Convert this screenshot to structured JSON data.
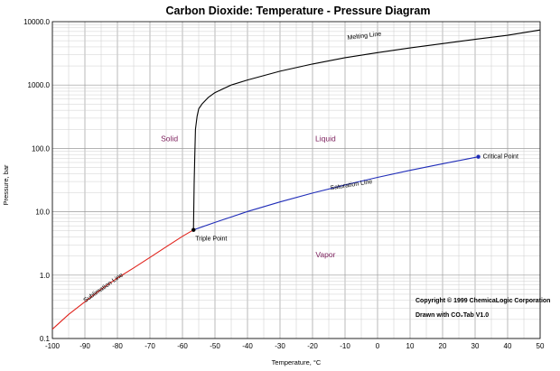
{
  "chart_data": {
    "type": "line",
    "title": "Carbon Dioxide: Temperature - Pressure Diagram",
    "xlabel": "Temperature, °C",
    "ylabel": "Pressure, bar",
    "xlim": [
      -100,
      50
    ],
    "ylim": [
      0.1,
      10000
    ],
    "yscale": "log",
    "grid": true,
    "x_ticks": [
      -100,
      -90,
      -80,
      -70,
      -60,
      -50,
      -40,
      -30,
      -20,
      -10,
      0,
      10,
      20,
      30,
      40,
      50
    ],
    "x_tick_labels": [
      "-100",
      "-90",
      "-80",
      "-70",
      "-60",
      "-50",
      "-40",
      "-30",
      "-20",
      "-10",
      "0",
      "10",
      "20",
      "30",
      "40",
      "50"
    ],
    "y_ticks": [
      0.1,
      1,
      10,
      100,
      1000,
      10000
    ],
    "y_tick_labels": [
      "0.1",
      "1.0",
      "10.0",
      "100.0",
      "1000.0",
      "10000.0"
    ],
    "series": [
      {
        "name": "Sublimation Line",
        "color": "#e0231c",
        "x": [
          -100,
          -95,
          -90,
          -85,
          -80,
          -75,
          -70,
          -65,
          -60,
          -56.6
        ],
        "y": [
          0.14,
          0.24,
          0.38,
          0.6,
          0.9,
          1.3,
          1.9,
          2.8,
          4.1,
          5.18
        ]
      },
      {
        "name": "Saturation Line",
        "color": "#1f2cb8",
        "x": [
          -56.6,
          -50,
          -40,
          -30,
          -20,
          -10,
          0,
          10,
          20,
          31
        ],
        "y": [
          5.18,
          6.8,
          10.1,
          14.3,
          19.7,
          26.5,
          34.9,
          45,
          57.3,
          73.8
        ]
      },
      {
        "name": "Melting Line",
        "color": "#000000",
        "x": [
          -56.6,
          -56.4,
          -56.2,
          -56,
          -55.5,
          -55,
          -54,
          -52,
          -50,
          -45,
          -40,
          -30,
          -20,
          -10,
          0,
          10,
          20,
          30,
          40,
          50
        ],
        "y": [
          5.18,
          30,
          80,
          200,
          320,
          420,
          500,
          640,
          760,
          1000,
          1200,
          1650,
          2150,
          2700,
          3250,
          3850,
          4500,
          5250,
          6100,
          7400
        ]
      }
    ],
    "points": [
      {
        "name": "Triple Point",
        "x": -56.6,
        "y": 5.18,
        "color": "#000000"
      },
      {
        "name": "Critical Point",
        "x": 31,
        "y": 73.8,
        "color": "#1f2cb8"
      }
    ],
    "region_labels": [
      {
        "text": "Solid",
        "x": -64,
        "y": 130
      },
      {
        "text": "Liquid",
        "x": -16,
        "y": 130
      },
      {
        "text": "Vapor",
        "x": -16,
        "y": 1.9
      }
    ],
    "line_labels": [
      {
        "text": "Sublimation Line",
        "x": -84,
        "y": 0.6,
        "angle": -35
      },
      {
        "text": "Saturation Line",
        "x": -8,
        "y": 25,
        "angle": -9
      },
      {
        "text": "Melting Line",
        "x": -4,
        "y": 5600,
        "angle": -7
      }
    ],
    "annotations": [
      {
        "text": "Copyright © 1999 ChemicaLogic Corporation"
      },
      {
        "text": "Drawn with CO₂Tab V1.0"
      }
    ]
  }
}
